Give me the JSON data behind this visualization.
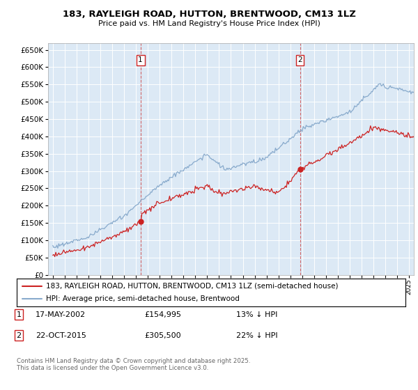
{
  "title": "183, RAYLEIGH ROAD, HUTTON, BRENTWOOD, CM13 1LZ",
  "subtitle": "Price paid vs. HM Land Registry's House Price Index (HPI)",
  "plot_bg_color": "#dce9f5",
  "red_color": "#cc2222",
  "blue_color": "#88aacc",
  "ylim": [
    0,
    670000
  ],
  "yticks": [
    0,
    50000,
    100000,
    150000,
    200000,
    250000,
    300000,
    350000,
    400000,
    450000,
    500000,
    550000,
    600000,
    650000
  ],
  "xlim_start": 1994.6,
  "xlim_end": 2025.4,
  "vline1_x": 2002.38,
  "vline2_x": 2015.81,
  "sale1_x": 2002.38,
  "sale1_y": 154995,
  "sale2_x": 2015.81,
  "sale2_y": 305500,
  "legend_red": "183, RAYLEIGH ROAD, HUTTON, BRENTWOOD, CM13 1LZ (semi-detached house)",
  "legend_blue": "HPI: Average price, semi-detached house, Brentwood",
  "note1_label": "1",
  "note1_date": "17-MAY-2002",
  "note1_price": "£154,995",
  "note1_hpi": "13% ↓ HPI",
  "note2_label": "2",
  "note2_date": "22-OCT-2015",
  "note2_price": "£305,500",
  "note2_hpi": "22% ↓ HPI",
  "footer": "Contains HM Land Registry data © Crown copyright and database right 2025.\nThis data is licensed under the Open Government Licence v3.0."
}
